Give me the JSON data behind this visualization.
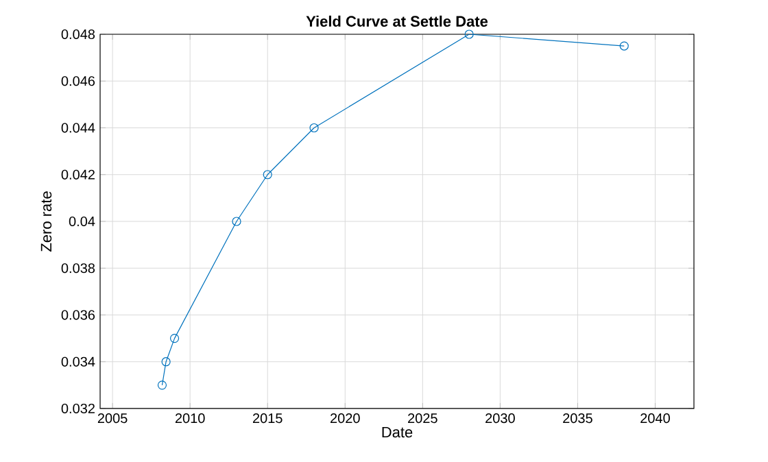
{
  "chart_data": {
    "type": "line",
    "title": "Yield Curve at Settle Date",
    "xlabel": "Date",
    "ylabel": "Zero rate",
    "x": [
      2008.2,
      2008.45,
      2009.0,
      2013,
      2015,
      2018,
      2028,
      2038
    ],
    "series": [
      {
        "color": "#0072bd",
        "values": [
          0.033,
          0.034,
          0.035,
          0.04,
          0.042,
          0.044,
          0.048,
          0.0475
        ]
      }
    ],
    "xlim": [
      2004.2,
      2042.5
    ],
    "xticks": [
      2005,
      2010,
      2015,
      2020,
      2025,
      2030,
      2035,
      2040
    ],
    "ylim": [
      0.032,
      0.048
    ],
    "yticks": [
      0.032,
      0.034,
      0.036,
      0.038,
      0.04,
      0.042,
      0.044,
      0.046,
      0.048
    ],
    "grid": true,
    "marker": "circle",
    "line_style": "solid"
  }
}
